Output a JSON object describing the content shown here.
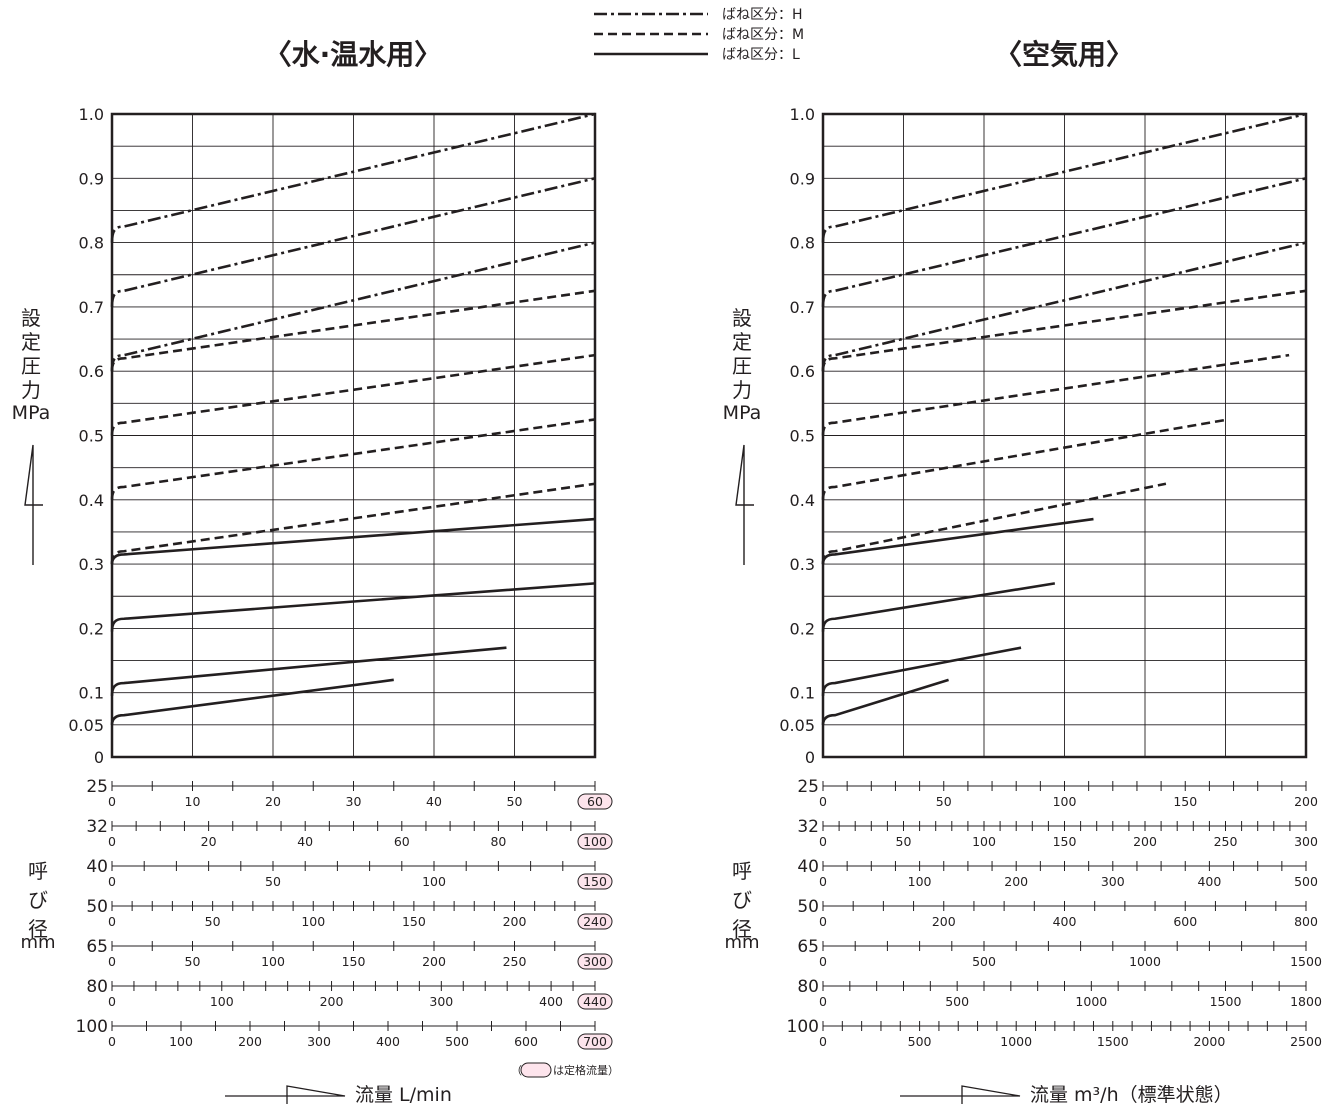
{
  "legend": [
    {
      "style": "dashdot",
      "label": "ばね区分：H"
    },
    {
      "style": "dash",
      "label": "ばね区分：M"
    },
    {
      "style": "solid",
      "label": "ばね区分：L"
    }
  ],
  "note_text": "は定格流量）",
  "note_open": "（",
  "colors": {
    "ink": "#231f20",
    "rated_fill": "#fde4ec",
    "grid": "#231f20"
  },
  "chart_data": [
    {
      "type": "line",
      "title": "〈水·温水用〉",
      "ylabel_chars": [
        "設",
        "定",
        "圧",
        "力"
      ],
      "ylabel_unit": "MPa",
      "y_ticks": [
        "1.0",
        "0.9",
        "0.8",
        "0.7",
        "0.6",
        "0.5",
        "0.4",
        "0.3",
        "0.2",
        "0.1",
        "0.05",
        "0"
      ],
      "ylim": [
        0,
        1.0
      ],
      "xlim": [
        0,
        60
      ],
      "grid": true,
      "xlabel": "流量 L/min",
      "sizes_label_chars": [
        "呼",
        "び",
        "径"
      ],
      "sizes_unit": "mm",
      "size_axes": [
        {
          "size": "25",
          "max": 60,
          "ticks": [
            "0",
            "10",
            "20",
            "30",
            "40",
            "50",
            "60"
          ],
          "minor": 12,
          "rated": "60"
        },
        {
          "size": "32",
          "max": 100,
          "ticks": [
            "0",
            "20",
            "40",
            "60",
            "80",
            "100"
          ],
          "minor": 20,
          "rated": "100"
        },
        {
          "size": "40",
          "max": 150,
          "ticks": [
            "0",
            "50",
            "100",
            "150"
          ],
          "minor": 15,
          "rated": "150"
        },
        {
          "size": "50",
          "max": 240,
          "ticks": [
            "0",
            "50",
            "100",
            "150",
            "200",
            "240"
          ],
          "minor": 24,
          "rated": "240"
        },
        {
          "size": "65",
          "max": 300,
          "ticks": [
            "0",
            "50",
            "100",
            "150",
            "200",
            "250",
            "300"
          ],
          "minor": 12,
          "rated": "300"
        },
        {
          "size": "80",
          "max": 440,
          "ticks": [
            "0",
            "100",
            "200",
            "300",
            "400",
            "440"
          ],
          "minor": 22,
          "rated": "440"
        },
        {
          "size": "100",
          "max": 700,
          "ticks": [
            "0",
            "100",
            "200",
            "300",
            "400",
            "500",
            "600",
            "700"
          ],
          "minor": 14,
          "rated": "700"
        }
      ],
      "series": [
        {
          "style": "dashdot",
          "start": 0.8,
          "knee": 0.825,
          "x_end": 60,
          "y_end": 1.0
        },
        {
          "style": "dashdot",
          "start": 0.7,
          "knee": 0.725,
          "x_end": 60,
          "y_end": 0.9
        },
        {
          "style": "dashdot",
          "start": 0.6,
          "knee": 0.625,
          "x_end": 60,
          "y_end": 0.8
        },
        {
          "style": "dash",
          "start": 0.6,
          "knee": 0.62,
          "x_end": 60,
          "y_end": 0.725
        },
        {
          "style": "dash",
          "start": 0.5,
          "knee": 0.52,
          "x_end": 60,
          "y_end": 0.625
        },
        {
          "style": "dash",
          "start": 0.4,
          "knee": 0.42,
          "x_end": 60,
          "y_end": 0.525
        },
        {
          "style": "dash",
          "start": 0.3,
          "knee": 0.32,
          "x_end": 60,
          "y_end": 0.425
        },
        {
          "style": "solid",
          "start": 0.3,
          "knee": 0.315,
          "x_end": 60,
          "y_end": 0.37
        },
        {
          "style": "solid",
          "start": 0.195,
          "knee": 0.215,
          "x_end": 60,
          "y_end": 0.27
        },
        {
          "style": "solid",
          "start": 0.095,
          "knee": 0.115,
          "x_end": 49,
          "y_end": 0.17
        },
        {
          "style": "solid",
          "start": 0.05,
          "knee": 0.065,
          "x_end": 35,
          "y_end": 0.12
        }
      ]
    },
    {
      "type": "line",
      "title": "〈空気用〉",
      "ylabel_chars": [
        "設",
        "定",
        "圧",
        "力"
      ],
      "ylabel_unit": "MPa",
      "y_ticks": [
        "1.0",
        "0.9",
        "0.8",
        "0.7",
        "0.6",
        "0.5",
        "0.4",
        "0.3",
        "0.2",
        "0.1",
        "0.05",
        "0"
      ],
      "ylim": [
        0,
        1.0
      ],
      "xlim": [
        0,
        200
      ],
      "grid": true,
      "xlabel": "流量 m³/h（標準状態）",
      "sizes_label_chars": [
        "呼",
        "び",
        "径"
      ],
      "sizes_unit": "mm",
      "size_axes": [
        {
          "size": "25",
          "max": 200,
          "ticks": [
            "0",
            "50",
            "100",
            "150",
            "200"
          ],
          "minor": 20,
          "rated": ""
        },
        {
          "size": "32",
          "max": 300,
          "ticks": [
            "0",
            "50",
            "100",
            "150",
            "200",
            "250",
            "300"
          ],
          "minor": 30,
          "rated": ""
        },
        {
          "size": "40",
          "max": 500,
          "ticks": [
            "0",
            "100",
            "200",
            "300",
            "400",
            "500"
          ],
          "minor": 20,
          "rated": ""
        },
        {
          "size": "50",
          "max": 800,
          "ticks": [
            "0",
            "200",
            "400",
            "600",
            "800"
          ],
          "minor": 16,
          "rated": ""
        },
        {
          "size": "65",
          "max": 1500,
          "ticks": [
            "0",
            "500",
            "1000",
            "1500"
          ],
          "minor": 15,
          "rated": ""
        },
        {
          "size": "80",
          "max": 1800,
          "ticks": [
            "0",
            "500",
            "1000",
            "1500",
            "1800"
          ],
          "minor": 18,
          "rated": ""
        },
        {
          "size": "100",
          "max": 2500,
          "ticks": [
            "0",
            "500",
            "1000",
            "1500",
            "2000",
            "2500"
          ],
          "minor": 25,
          "rated": ""
        }
      ],
      "series": [
        {
          "style": "dashdot",
          "start": 0.8,
          "knee": 0.825,
          "x_end": 200,
          "y_end": 1.0
        },
        {
          "style": "dashdot",
          "start": 0.7,
          "knee": 0.725,
          "x_end": 200,
          "y_end": 0.9
        },
        {
          "style": "dashdot",
          "start": 0.6,
          "knee": 0.625,
          "x_end": 200,
          "y_end": 0.8
        },
        {
          "style": "dash",
          "start": 0.6,
          "knee": 0.62,
          "x_end": 200,
          "y_end": 0.725
        },
        {
          "style": "dash",
          "start": 0.5,
          "knee": 0.52,
          "x_end": 193,
          "y_end": 0.625
        },
        {
          "style": "dash",
          "start": 0.4,
          "knee": 0.42,
          "x_end": 168,
          "y_end": 0.525
        },
        {
          "style": "dash",
          "start": 0.3,
          "knee": 0.32,
          "x_end": 142,
          "y_end": 0.425
        },
        {
          "style": "solid",
          "start": 0.3,
          "knee": 0.315,
          "x_end": 112,
          "y_end": 0.37
        },
        {
          "style": "solid",
          "start": 0.195,
          "knee": 0.215,
          "x_end": 96,
          "y_end": 0.27
        },
        {
          "style": "solid",
          "start": 0.095,
          "knee": 0.115,
          "x_end": 82,
          "y_end": 0.17
        },
        {
          "style": "solid",
          "start": 0.05,
          "knee": 0.065,
          "x_end": 52,
          "y_end": 0.12
        }
      ]
    }
  ]
}
